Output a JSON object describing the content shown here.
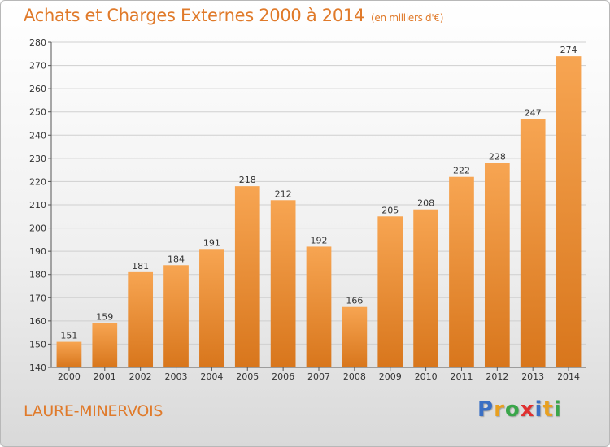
{
  "title": "Achats et Charges Externes 2000 à 2014",
  "unit_note": "(en milliers d'€)",
  "town": "LAURE-MINERVOIS",
  "logo": {
    "text": "Proxiti",
    "letters": [
      "P",
      "r",
      "o",
      "x",
      "i",
      "t",
      "i"
    ],
    "letter_colors": [
      "#3a6fc4",
      "#e8a020",
      "#3aa64a",
      "#e03030",
      "#3a6fc4",
      "#e8a020",
      "#3aa64a"
    ]
  },
  "colors": {
    "bar_top": "#f7a552",
    "bar_bottom": "#d8761c",
    "grid": "#cfcfcf",
    "text_accent": "#e07a2a"
  },
  "chart_data": {
    "type": "bar",
    "title": "Achats et Charges Externes 2000 à 2014",
    "subtitle": "(en milliers d'€)",
    "xlabel": "",
    "ylabel": "",
    "categories": [
      "2000",
      "2001",
      "2002",
      "2003",
      "2004",
      "2005",
      "2006",
      "2007",
      "2008",
      "2009",
      "2010",
      "2011",
      "2012",
      "2013",
      "2014"
    ],
    "values": [
      151,
      159,
      181,
      184,
      191,
      218,
      212,
      192,
      166,
      205,
      208,
      222,
      228,
      247,
      274
    ],
    "ylim": [
      140,
      280
    ],
    "yticks": [
      140,
      150,
      160,
      170,
      180,
      190,
      200,
      210,
      220,
      230,
      240,
      250,
      260,
      270,
      280
    ],
    "grid": true,
    "data_labels": true
  }
}
